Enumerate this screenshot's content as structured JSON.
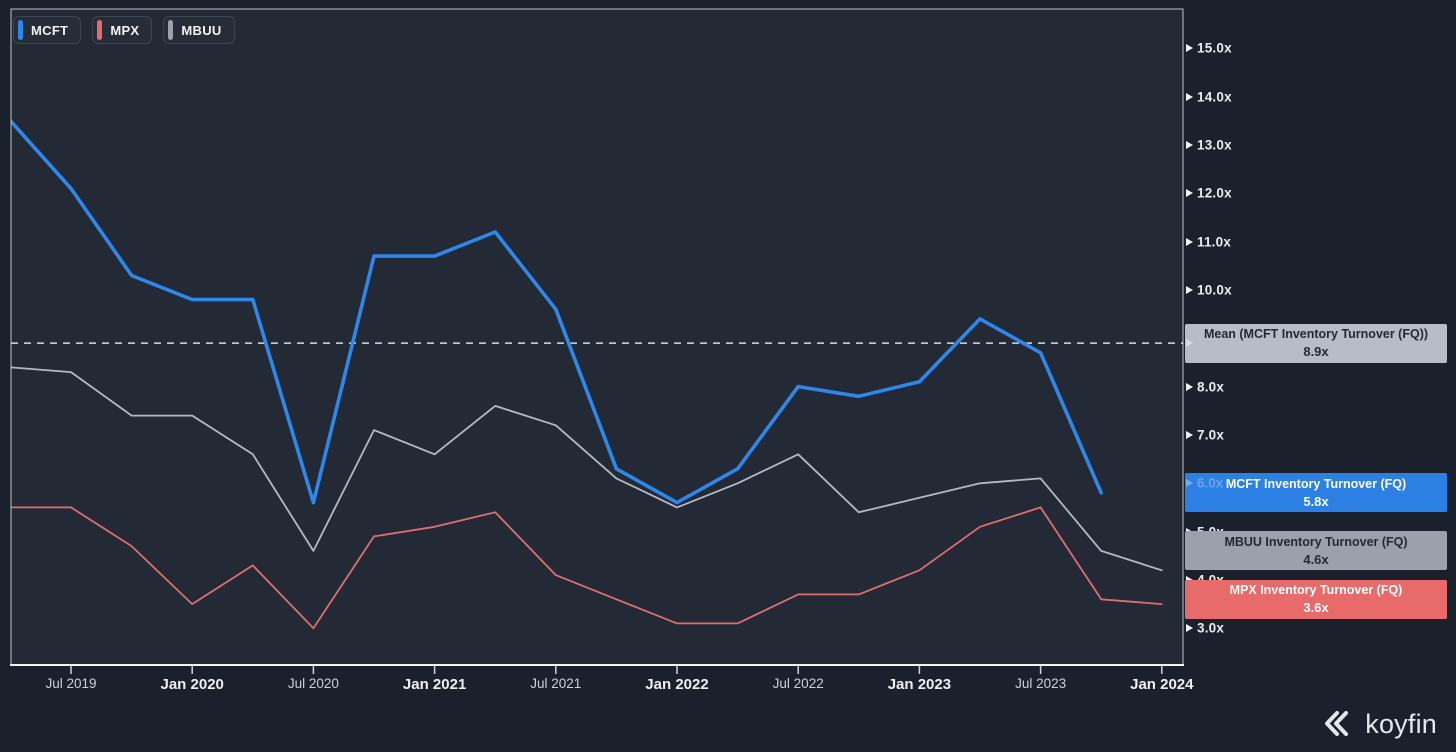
{
  "legend": {
    "items": [
      {
        "ticker": "MCFT",
        "color": "#2e87ea"
      },
      {
        "ticker": "MPX",
        "color": "#e76b6b"
      },
      {
        "ticker": "MBUU",
        "color": "#9aa1ab"
      }
    ]
  },
  "y_axis": {
    "visible_ticks": [
      {
        "label": "15.0x",
        "value": 15
      },
      {
        "label": "14.0x",
        "value": 14
      },
      {
        "label": "13.0x",
        "value": 13
      },
      {
        "label": "12.0x",
        "value": 12
      },
      {
        "label": "11.0x",
        "value": 11
      },
      {
        "label": "10.0x",
        "value": 10
      },
      {
        "label": "8.0x",
        "value": 8
      },
      {
        "label": "7.0x",
        "value": 7
      },
      {
        "label": "5.0x",
        "value": 5
      },
      {
        "label": "4.0x",
        "value": 4
      },
      {
        "label": "3.0x",
        "value": 3
      }
    ],
    "overlay_tick": {
      "label": "6.0x",
      "value": 6
    }
  },
  "x_axis": {
    "ticks": [
      {
        "label": "Jul 2019",
        "month": 0,
        "bold": false
      },
      {
        "label": "Jan 2020",
        "month": 6,
        "bold": true
      },
      {
        "label": "Jul 2020",
        "month": 12,
        "bold": false
      },
      {
        "label": "Jan 2021",
        "month": 18,
        "bold": true
      },
      {
        "label": "Jul 2021",
        "month": 24,
        "bold": false
      },
      {
        "label": "Jan 2022",
        "month": 30,
        "bold": true
      },
      {
        "label": "Jul 2022",
        "month": 36,
        "bold": false
      },
      {
        "label": "Jan 2023",
        "month": 42,
        "bold": true
      },
      {
        "label": "Jul 2023",
        "month": 48,
        "bold": false
      },
      {
        "label": "Jan 2024",
        "month": 54,
        "bold": true
      }
    ]
  },
  "badges": [
    {
      "id": "mean",
      "line1": "Mean (MCFT Inventory Turnover (FQ))",
      "line2": "8.9x",
      "bg": "#b7bdc7",
      "text_color": "#232935",
      "value": 8.9
    },
    {
      "id": "mcft",
      "line1": "MCFT Inventory Turnover (FQ)",
      "line2": "5.8x",
      "bg": "#2c80e4",
      "text_color": "#ffffff",
      "value": 5.8
    },
    {
      "id": "mbuu",
      "line1": "MBUU Inventory Turnover (FQ)",
      "line2": "4.6x",
      "bg": "#9aa1ab",
      "text_color": "#232935",
      "value": 4.6
    },
    {
      "id": "mpx",
      "line1": "MPX Inventory Turnover (FQ)",
      "line2": "3.6x",
      "bg": "#e76b6b",
      "text_color": "#ffffff",
      "value": 3.6
    }
  ],
  "chart_data": {
    "type": "line",
    "title": "",
    "ylabel": "Inventory Turnover (FQ)",
    "y_tick_suffix": "x",
    "ylim": [
      2.1,
      15.8
    ],
    "grid": false,
    "legend_position": "top-left",
    "categories": [
      "Apr 2019",
      "Jul 2019",
      "Oct 2019",
      "Jan 2020",
      "Apr 2020",
      "Jul 2020",
      "Oct 2020",
      "Jan 2021",
      "Apr 2021",
      "Jul 2021",
      "Oct 2021",
      "Jan 2022",
      "Apr 2022",
      "Jul 2022",
      "Oct 2022",
      "Jan 2023",
      "Apr 2023",
      "Jul 2023",
      "Oct 2023",
      "Jan 2024"
    ],
    "start_month_offset": -3,
    "months_per_step": 3,
    "series": [
      {
        "name": "MCFT Inventory Turnover (FQ)",
        "ticker": "MCFT",
        "color": "#2e87ea",
        "width": 3.6,
        "values": [
          13.5,
          12.1,
          10.3,
          9.8,
          9.8,
          5.6,
          10.7,
          10.7,
          11.2,
          9.6,
          6.3,
          5.6,
          6.3,
          8.0,
          7.8,
          8.1,
          9.4,
          8.7,
          5.8,
          null
        ]
      },
      {
        "name": "MBUU Inventory Turnover (FQ)",
        "ticker": "MBUU",
        "color": "#b4bac3",
        "width": 1.8,
        "values": [
          8.4,
          8.3,
          7.4,
          7.4,
          6.6,
          4.6,
          7.1,
          6.6,
          7.6,
          7.2,
          6.1,
          5.5,
          6.0,
          6.6,
          5.4,
          5.7,
          6.0,
          6.1,
          4.6,
          4.2
        ]
      },
      {
        "name": "MPX Inventory Turnover (FQ)",
        "ticker": "MPX",
        "color": "#dd6f6f",
        "width": 1.8,
        "values": [
          5.5,
          5.5,
          4.7,
          3.5,
          4.3,
          3.0,
          4.9,
          5.1,
          5.4,
          4.1,
          3.6,
          3.1,
          3.1,
          3.7,
          3.7,
          4.2,
          5.1,
          5.5,
          3.6,
          3.5
        ]
      }
    ],
    "mean_line": {
      "label": "Mean (MCFT Inventory Turnover (FQ))",
      "value": 8.9,
      "value_label": "8.9x",
      "style": "dashed"
    }
  },
  "footer": {
    "logo_text": "koyfin"
  }
}
